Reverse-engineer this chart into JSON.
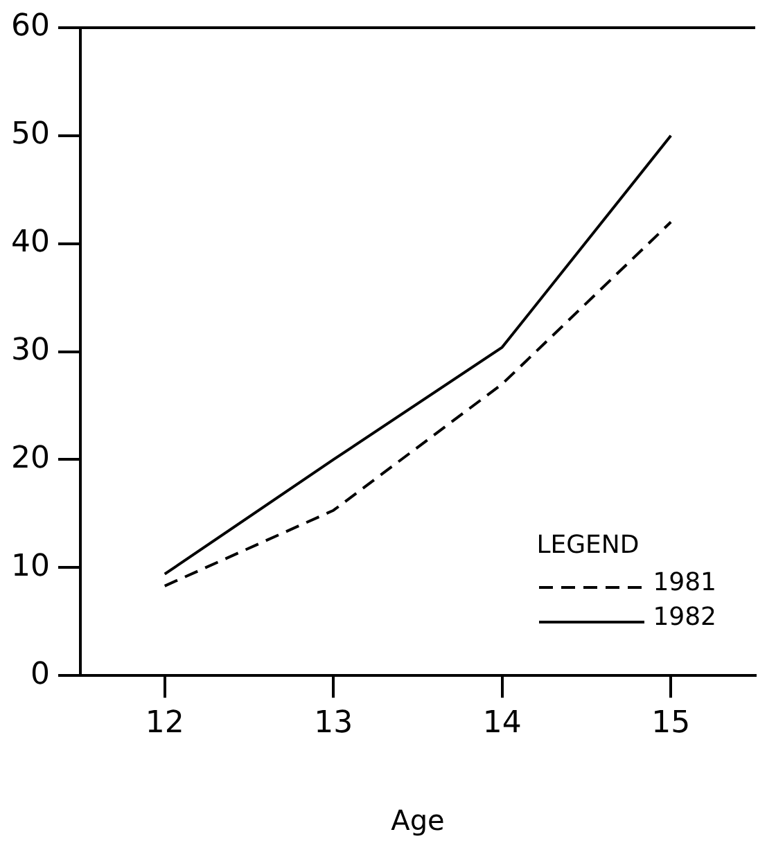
{
  "chart_data": {
    "type": "line",
    "xlabel": "Age",
    "x": [
      12,
      13,
      14,
      15
    ],
    "series": [
      {
        "name": "1981",
        "color": "#000000",
        "line_style": "dashed",
        "values": [
          8.3,
          15.3,
          27,
          42
        ]
      },
      {
        "name": "1982",
        "color": "#000000",
        "line_style": "solid",
        "values": [
          9.4,
          20,
          30.4,
          50
        ]
      }
    ],
    "xlim": [
      11.5,
      15.5
    ],
    "xticks": [
      12,
      13,
      14,
      15
    ],
    "ylim": [
      0,
      60
    ],
    "yticks": [
      0,
      10,
      20,
      30,
      40,
      50,
      60
    ],
    "grid": false,
    "legend": "bottom right",
    "legend_title": "LEGEND",
    "marker": "none"
  }
}
